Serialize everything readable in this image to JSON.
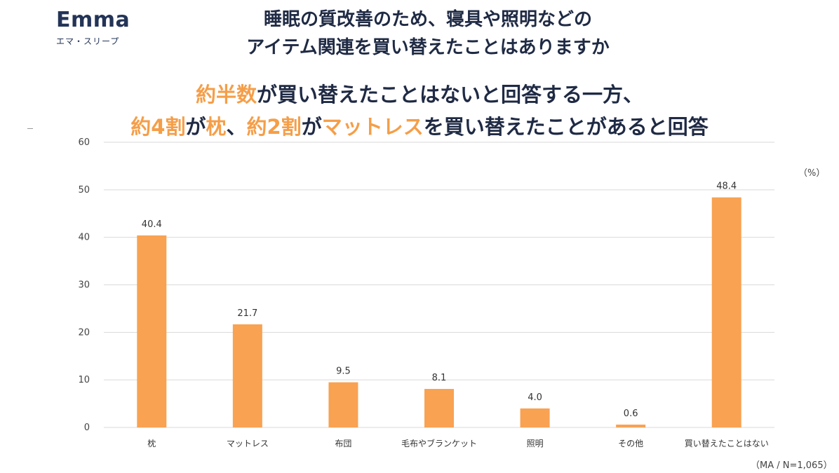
{
  "logo": {
    "wordmark": "Emma",
    "subtitle": "エマ・スリープ"
  },
  "title": {
    "line1": "睡眠の質改善のため、寝具や照明などの",
    "line2": "アイテム関連を買い替えたことはありますか"
  },
  "subtitle": {
    "line1": [
      {
        "text": "約半数",
        "hl": true
      },
      {
        "text": "が買い替えたことはないと回答する一方、",
        "hl": false
      }
    ],
    "line2": [
      {
        "text": "約4割",
        "hl": true
      },
      {
        "text": "が",
        "hl": false
      },
      {
        "text": "枕",
        "hl": true
      },
      {
        "text": "、",
        "hl": false
      },
      {
        "text": "約2割",
        "hl": true
      },
      {
        "text": "が",
        "hl": false
      },
      {
        "text": "マットレス",
        "hl": true
      },
      {
        "text": "を買い替えたことがあると回答",
        "hl": false
      }
    ]
  },
  "unit_label": "（%）",
  "note": "（MA / N=1,065）",
  "colors": {
    "bar": "#f8a252",
    "highlight": "#f59e48",
    "text": "#1f2a44",
    "grid": "#d9d9d9"
  },
  "chart_data": {
    "type": "bar",
    "categories": [
      "枕",
      "マットレス",
      "布団",
      "毛布やブランケット",
      "照明",
      "その他",
      "買い替えたことはない"
    ],
    "values": [
      40.4,
      21.7,
      9.5,
      8.1,
      4.0,
      0.6,
      48.4
    ],
    "value_labels": [
      "40.4",
      "21.7",
      "9.5",
      "8.1",
      "4.0",
      "0.6",
      "48.4"
    ],
    "ylim": [
      0,
      60
    ],
    "yticks": [
      0,
      10,
      20,
      30,
      40,
      50,
      60
    ],
    "grid": true,
    "legend": "none"
  }
}
